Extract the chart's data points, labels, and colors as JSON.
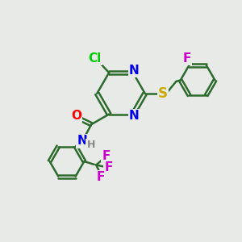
{
  "background_color": "#e8eae8",
  "bond_color": "#2d6b2d",
  "bond_width": 1.8,
  "atom_colors": {
    "Cl": "#00cc00",
    "O": "#ff0000",
    "N": "#0000ee",
    "S": "#ccaa00",
    "F": "#cc00cc",
    "H": "#888888"
  },
  "font_size": 11,
  "fig_size": [
    3.0,
    3.0
  ],
  "dpi": 100
}
